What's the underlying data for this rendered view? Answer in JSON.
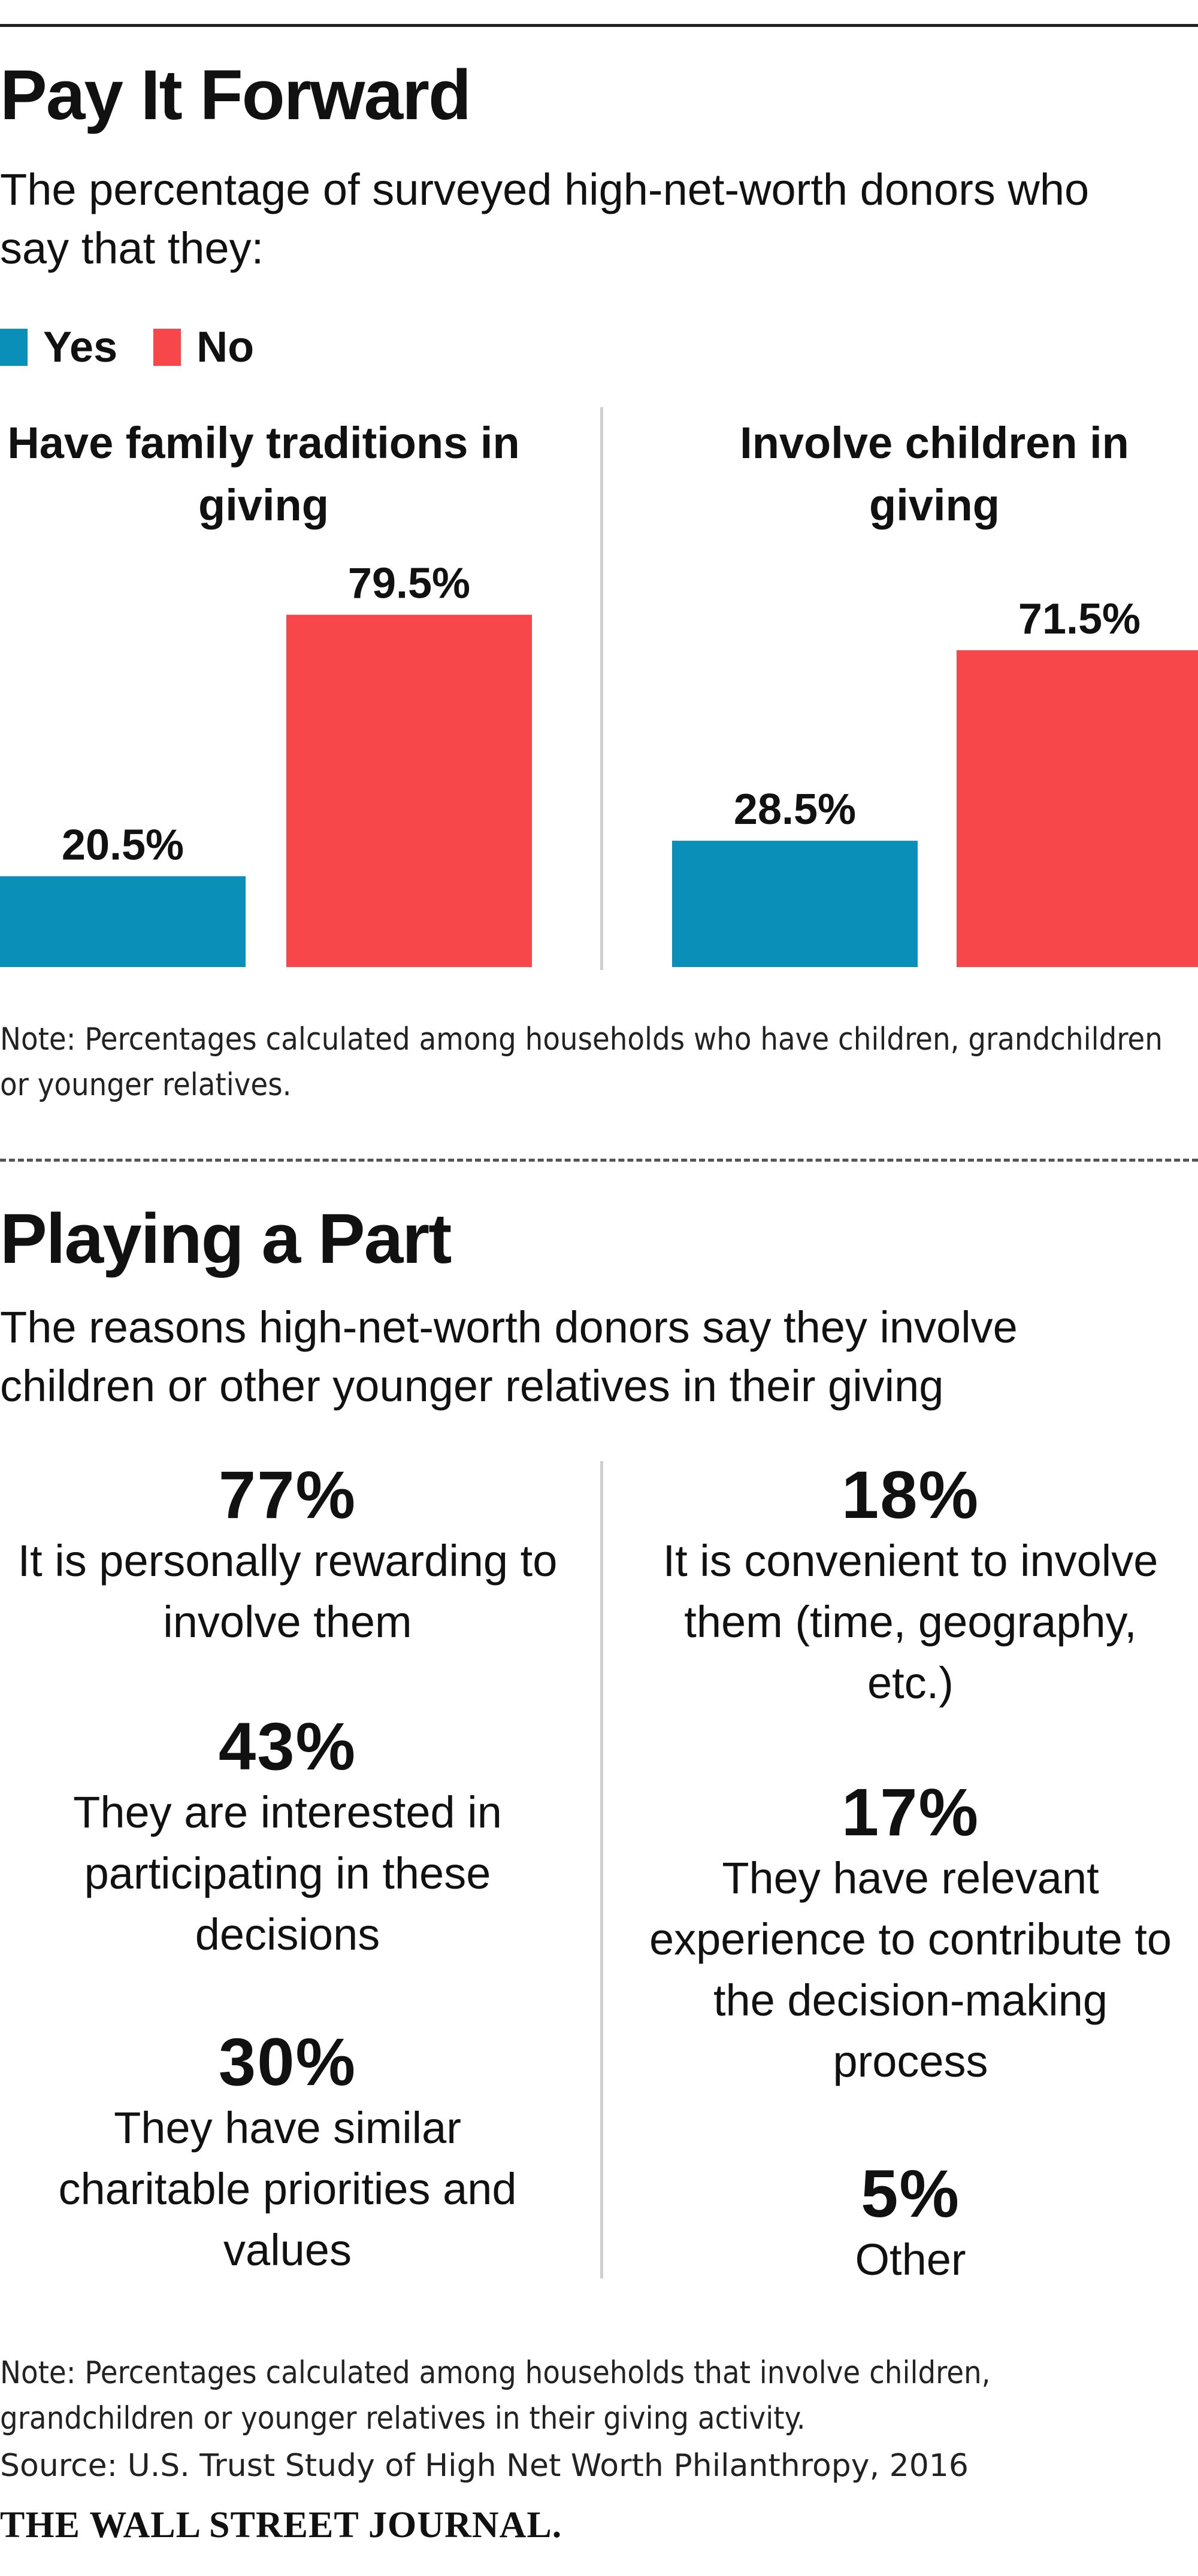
{
  "section1": {
    "title": "Pay It Forward",
    "subtitle": "The percentage of surveyed high-net-worth donors who say that they:",
    "note": "Note: Percentages calculated among households who have children, grandchildren or younger relatives."
  },
  "chart_data": {
    "type": "bar",
    "series": [
      {
        "name": "Yes",
        "color": "#0a8fb8"
      },
      {
        "name": "No",
        "color": "#f7474b"
      }
    ],
    "ylim": [
      0,
      100
    ],
    "grid": false,
    "legend_placement": "top-left",
    "panels": [
      {
        "title": "Have family traditions in giving",
        "values": [
          20.5,
          79.5
        ],
        "labels": [
          "20.5%",
          "79.5%"
        ]
      },
      {
        "title": "Involve children in giving",
        "values": [
          28.5,
          71.5
        ],
        "labels": [
          "28.5%",
          "71.5%"
        ]
      }
    ]
  },
  "section2": {
    "title": "Playing a Part",
    "subtitle": "The reasons high-net-worth donors say they involve children or other younger relatives in their giving",
    "left": [
      {
        "pct": "77%",
        "text": "It is personally rewarding to involve them"
      },
      {
        "pct": "43%",
        "text": "They are interested in participating in these decisions"
      },
      {
        "pct": "30%",
        "text": "They have similar charitable priorities and values"
      }
    ],
    "right": [
      {
        "pct": "18%",
        "text": "It is convenient to involve them (time, geography, etc.)"
      },
      {
        "pct": "17%",
        "text": "They have relevant experience to contribute to the decision-making process"
      },
      {
        "pct": "5%",
        "text": "Other"
      }
    ],
    "note": "Note: Percentages calculated among households that involve children, grandchildren or younger relatives in their giving activity."
  },
  "source": "Source: U.S. Trust Study of High Net Worth Philanthropy, 2016",
  "masthead": "THE WALL STREET JOURNAL."
}
